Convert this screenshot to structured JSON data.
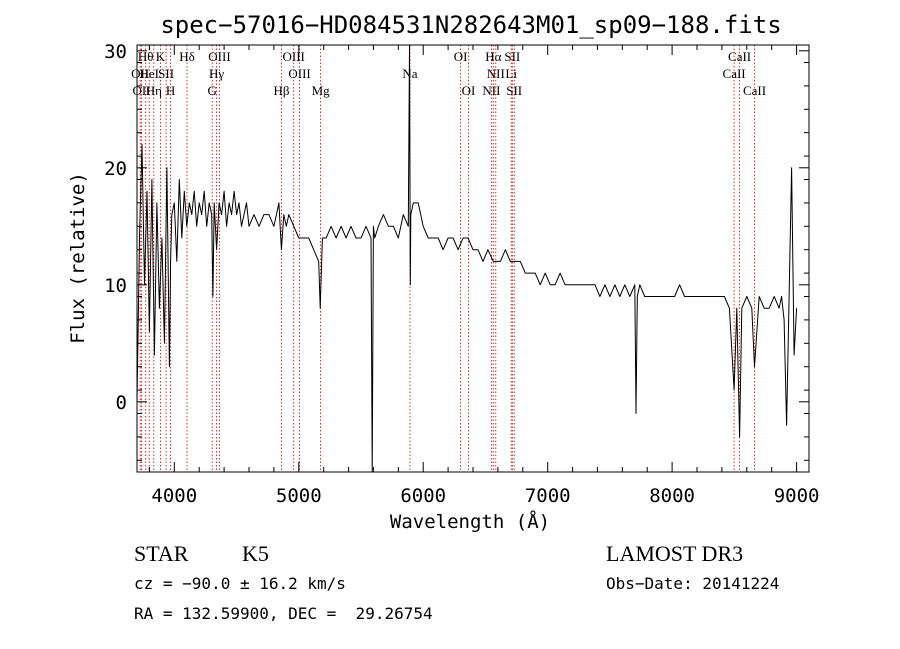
{
  "chart_data": {
    "type": "line",
    "title": "spec−57016−HD084531N282643M01_sp09−188.fits",
    "xlabel": "Wavelength (Å)",
    "ylabel": "Flux (relative)",
    "xlim": [
      3700,
      9100
    ],
    "ylim": [
      -6,
      30.5
    ],
    "xticks": [
      4000,
      5000,
      6000,
      7000,
      8000,
      9000
    ],
    "yticks": [
      0,
      10,
      20,
      30
    ],
    "series": [
      {
        "name": "flux",
        "x": [
          3700,
          3720,
          3740,
          3760,
          3780,
          3800,
          3820,
          3840,
          3860,
          3880,
          3900,
          3920,
          3940,
          3960,
          3970,
          3980,
          4000,
          4020,
          4040,
          4060,
          4080,
          4100,
          4120,
          4140,
          4160,
          4180,
          4200,
          4220,
          4240,
          4260,
          4280,
          4300,
          4310,
          4320,
          4340,
          4360,
          4380,
          4400,
          4420,
          4440,
          4460,
          4480,
          4500,
          4520,
          4540,
          4560,
          4580,
          4600,
          4640,
          4680,
          4720,
          4760,
          4800,
          4840,
          4860,
          4880,
          4900,
          4920,
          4960,
          5000,
          5040,
          5080,
          5120,
          5160,
          5172,
          5190,
          5220,
          5260,
          5300,
          5340,
          5380,
          5420,
          5460,
          5500,
          5540,
          5580,
          5590,
          5600,
          5610,
          5640,
          5680,
          5720,
          5760,
          5800,
          5840,
          5880,
          5890,
          5896,
          5900,
          5920,
          5960,
          6000,
          6040,
          6080,
          6120,
          6160,
          6200,
          6240,
          6280,
          6320,
          6360,
          6400,
          6440,
          6480,
          6520,
          6563,
          6580,
          6620,
          6660,
          6700,
          6740,
          6780,
          6820,
          6860,
          6900,
          6940,
          6980,
          7020,
          7060,
          7100,
          7140,
          7180,
          7220,
          7260,
          7300,
          7340,
          7380,
          7420,
          7460,
          7500,
          7540,
          7580,
          7620,
          7660,
          7700,
          7710,
          7720,
          7740,
          7780,
          7820,
          7860,
          7900,
          7940,
          7980,
          8020,
          8060,
          8100,
          8140,
          8180,
          8220,
          8260,
          8300,
          8340,
          8380,
          8420,
          8460,
          8498,
          8520,
          8542,
          8560,
          8600,
          8640,
          8662,
          8700,
          8740,
          8780,
          8820,
          8860,
          8880,
          8900,
          8920,
          8940,
          8960,
          8980,
          9000
        ],
        "y": [
          0,
          14,
          22,
          10,
          18,
          6,
          19,
          4,
          17,
          8,
          14,
          5,
          20,
          3,
          12,
          16,
          17,
          12,
          19,
          14,
          18,
          15,
          17,
          16,
          18,
          15,
          17,
          16,
          18,
          15,
          17,
          16,
          9,
          17,
          13,
          17,
          16,
          18,
          15,
          17,
          16,
          18,
          16,
          17,
          15,
          16,
          17,
          15,
          16,
          15,
          16,
          16,
          15,
          17,
          13,
          16,
          15,
          16,
          15,
          14,
          14,
          14,
          13,
          12,
          8,
          14,
          14,
          15,
          14,
          15,
          14,
          15,
          14,
          14,
          15,
          14,
          -6,
          15,
          14,
          15,
          16,
          15,
          15,
          14,
          16,
          15,
          31,
          10,
          16,
          17,
          17,
          15,
          14,
          14,
          14,
          13,
          14,
          14,
          13,
          14,
          14,
          13,
          13,
          12,
          13,
          12,
          12,
          12,
          13,
          12,
          12,
          12,
          11,
          11,
          11,
          10,
          11,
          10,
          10,
          11,
          10,
          10,
          10,
          10,
          10,
          10,
          10,
          9,
          10,
          9,
          10,
          9,
          10,
          9,
          10,
          -1,
          9,
          10,
          9,
          9,
          9,
          9,
          9,
          9,
          9,
          10,
          9,
          9,
          9,
          9,
          9,
          9,
          9,
          9,
          9,
          8,
          1,
          8,
          -3,
          8,
          9,
          8,
          3,
          9,
          8,
          8,
          9,
          8,
          9,
          7,
          -2,
          9,
          20,
          4,
          8
        ]
      }
    ],
    "lines": [
      {
        "wl": 3726,
        "label": "OII",
        "row": 2
      },
      {
        "wl": 3736,
        "label": "OII",
        "row": 3
      },
      {
        "wl": 3770,
        "label": "Hθ",
        "row": 1
      },
      {
        "wl": 3798,
        "label": "HeI",
        "row": 2
      },
      {
        "wl": 3835,
        "label": "Hη",
        "row": 3
      },
      {
        "wl": 3889,
        "label": "K",
        "row": 1
      },
      {
        "wl": 3934,
        "label": "SII",
        "row": 2
      },
      {
        "wl": 3970,
        "label": "H",
        "row": 3
      },
      {
        "wl": 4102,
        "label": "Hδ",
        "row": 1
      },
      {
        "wl": 4304,
        "label": "G",
        "row": 3
      },
      {
        "wl": 4340,
        "label": "Hγ",
        "row": 2
      },
      {
        "wl": 4363,
        "label": "OIII",
        "row": 1
      },
      {
        "wl": 4861,
        "label": "Hβ",
        "row": 3
      },
      {
        "wl": 4959,
        "label": "OIII",
        "row": 1
      },
      {
        "wl": 5007,
        "label": "OIII",
        "row": 2
      },
      {
        "wl": 5175,
        "label": "Mg",
        "row": 3
      },
      {
        "wl": 5894,
        "label": "Na",
        "row": 2
      },
      {
        "wl": 6300,
        "label": "OI",
        "row": 1
      },
      {
        "wl": 6364,
        "label": "OI",
        "row": 3
      },
      {
        "wl": 6548,
        "label": "NII",
        "row": 3
      },
      {
        "wl": 6563,
        "label": "Hα",
        "row": 1
      },
      {
        "wl": 6583,
        "label": "NII",
        "row": 2
      },
      {
        "wl": 6707,
        "label": "Li",
        "row": 2
      },
      {
        "wl": 6716,
        "label": "SII",
        "row": 1
      },
      {
        "wl": 6731,
        "label": "SII",
        "row": 3
      },
      {
        "wl": 8498,
        "label": "CaII",
        "row": 2
      },
      {
        "wl": 8542,
        "label": "CaII",
        "row": 1
      },
      {
        "wl": 8662,
        "label": "CaII",
        "row": 3
      }
    ],
    "colors": {
      "line": "#000000",
      "marker": "#cc0000"
    }
  },
  "info": {
    "object_class": "STAR",
    "subclass": "K5",
    "redshift": "cz = −90.0 ± 16.2 km/s",
    "coords": "RA = 132.59900, DEC =  29.26754",
    "survey": "LAMOST DR3",
    "obs_date": "Obs−Date: 20141224"
  }
}
